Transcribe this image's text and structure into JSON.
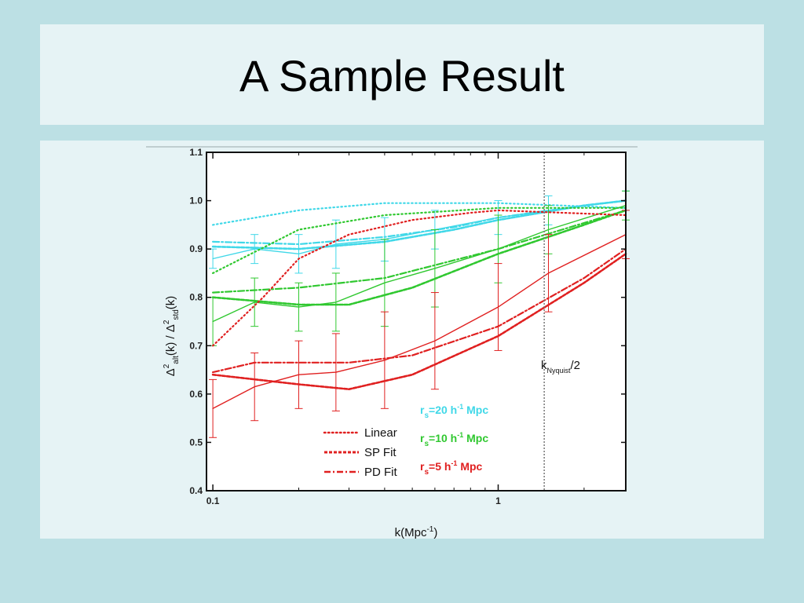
{
  "slide": {
    "title": "A Sample Result",
    "colors": {
      "background": "#bce0e4",
      "panel": "#e6f3f5"
    }
  },
  "chart_data": {
    "type": "line",
    "xscale": "log",
    "xlim": [
      0.095,
      2.8
    ],
    "ylim": [
      0.4,
      1.1
    ],
    "x_ticks": [
      "0.1",
      "1"
    ],
    "y_ticks": [
      "0.4",
      "0.5",
      "0.6",
      "0.7",
      "0.8",
      "0.9",
      "1.0",
      "1.1"
    ],
    "xlabel": {
      "main": "k(Mpc",
      "sup": "-1",
      "close": ")"
    },
    "ylabel": {
      "d1": "Δ",
      "s1": "2",
      "b1": "alt",
      "m1": "(k) / ",
      "d2": "Δ",
      "s2": "2",
      "b2": "std",
      "m2": "(k)"
    },
    "nyquist": {
      "k": 1.45,
      "label_main": "k",
      "label_sub": "Nyquist",
      "label_end": "/2"
    },
    "legend": {
      "styles": [
        {
          "label": "Linear",
          "dash": "dotted"
        },
        {
          "label": "SP Fit",
          "dash": "dashed"
        },
        {
          "label": "PD Fit",
          "dash": "dashdot"
        }
      ],
      "radii": [
        {
          "r": "r",
          "sub": "s",
          "val": "=20 h",
          "sup": "-1",
          "unit": " Mpc",
          "color": "#40d8e8"
        },
        {
          "r": "r",
          "sub": "s",
          "val": "=10 h",
          "sup": "-1",
          "unit": " Mpc",
          "color": "#30c830"
        },
        {
          "r": "r",
          "sub": "s",
          "val": "=5 h",
          "sup": "-1",
          "unit": " Mpc",
          "color": "#e02020"
        }
      ]
    },
    "series": [
      {
        "name": "=20 h",
        "color": "#40d8e8",
        "style": "solid",
        "x": [
          0.1,
          0.14,
          0.2,
          0.27,
          0.4,
          0.6,
          1.0,
          1.5,
          2.8
        ],
        "y": [
          0.88,
          0.9,
          0.89,
          0.91,
          0.92,
          0.94,
          0.965,
          0.98,
          1.0
        ],
        "err": [
          0.02,
          0.03,
          0.04,
          0.05,
          0.045,
          0.04,
          0.035,
          0.03,
          0.02
        ]
      },
      {
        "name": "=20 h",
        "color": "#40d8e8",
        "style": "dotted",
        "x": [
          0.1,
          0.2,
          0.4,
          1.0,
          2.8
        ],
        "y": [
          0.95,
          0.98,
          0.995,
          0.995,
          0.985
        ]
      },
      {
        "name": "=20 h",
        "color": "#40d8e8",
        "style": "dashed",
        "x": [
          0.1,
          0.2,
          0.4,
          0.7,
          1.0,
          2.0,
          2.8
        ],
        "y": [
          0.905,
          0.9,
          0.915,
          0.94,
          0.96,
          0.99,
          1.0
        ]
      },
      {
        "name": "=20 h",
        "color": "#40d8e8",
        "style": "dashdot",
        "x": [
          0.1,
          0.2,
          0.4,
          0.7,
          1.0,
          2.0,
          2.8
        ],
        "y": [
          0.915,
          0.91,
          0.925,
          0.945,
          0.965,
          0.99,
          1.0
        ]
      },
      {
        "name": "=10 h",
        "color": "#30c830",
        "style": "solid",
        "x": [
          0.1,
          0.14,
          0.2,
          0.27,
          0.4,
          0.6,
          1.0,
          1.5,
          2.8
        ],
        "y": [
          0.75,
          0.79,
          0.78,
          0.79,
          0.83,
          0.86,
          0.9,
          0.94,
          0.99
        ],
        "err": [
          0.05,
          0.05,
          0.05,
          0.06,
          0.09,
          0.08,
          0.07,
          0.05,
          0.03
        ]
      },
      {
        "name": "=10 h",
        "color": "#30c830",
        "style": "dotted",
        "x": [
          0.1,
          0.2,
          0.4,
          1.0,
          2.8
        ],
        "y": [
          0.85,
          0.94,
          0.97,
          0.985,
          0.985
        ]
      },
      {
        "name": "=10 h",
        "color": "#30c830",
        "style": "dashed",
        "x": [
          0.1,
          0.2,
          0.3,
          0.5,
          1.0,
          2.0,
          2.8
        ],
        "y": [
          0.8,
          0.785,
          0.785,
          0.82,
          0.89,
          0.95,
          0.98
        ]
      },
      {
        "name": "=10 h",
        "color": "#30c830",
        "style": "dashdot",
        "x": [
          0.1,
          0.2,
          0.4,
          1.0,
          2.8
        ],
        "y": [
          0.81,
          0.82,
          0.84,
          0.9,
          0.98
        ]
      },
      {
        "name": "=5 h",
        "color": "#e02020",
        "style": "solid",
        "x": [
          0.1,
          0.14,
          0.2,
          0.27,
          0.4,
          0.6,
          1.0,
          1.5,
          2.8
        ],
        "y": [
          0.57,
          0.615,
          0.64,
          0.645,
          0.67,
          0.71,
          0.78,
          0.85,
          0.93
        ],
        "err": [
          0.06,
          0.07,
          0.07,
          0.08,
          0.1,
          0.1,
          0.09,
          0.08,
          0.05
        ]
      },
      {
        "name": "=5 h",
        "color": "#e02020",
        "style": "dotted",
        "x": [
          0.1,
          0.15,
          0.2,
          0.3,
          0.5,
          0.8,
          1.0,
          2.8
        ],
        "y": [
          0.7,
          0.8,
          0.88,
          0.93,
          0.96,
          0.975,
          0.98,
          0.97
        ]
      },
      {
        "name": "=5 h",
        "color": "#e02020",
        "style": "dashed",
        "x": [
          0.1,
          0.2,
          0.3,
          0.5,
          1.0,
          2.0,
          2.8
        ],
        "y": [
          0.64,
          0.62,
          0.61,
          0.64,
          0.72,
          0.83,
          0.89
        ]
      },
      {
        "name": "=5 h",
        "color": "#e02020",
        "style": "dashdot",
        "x": [
          0.1,
          0.14,
          0.2,
          0.3,
          0.5,
          1.0,
          2.0,
          2.8
        ],
        "y": [
          0.645,
          0.665,
          0.665,
          0.665,
          0.68,
          0.74,
          0.84,
          0.9
        ]
      }
    ]
  }
}
